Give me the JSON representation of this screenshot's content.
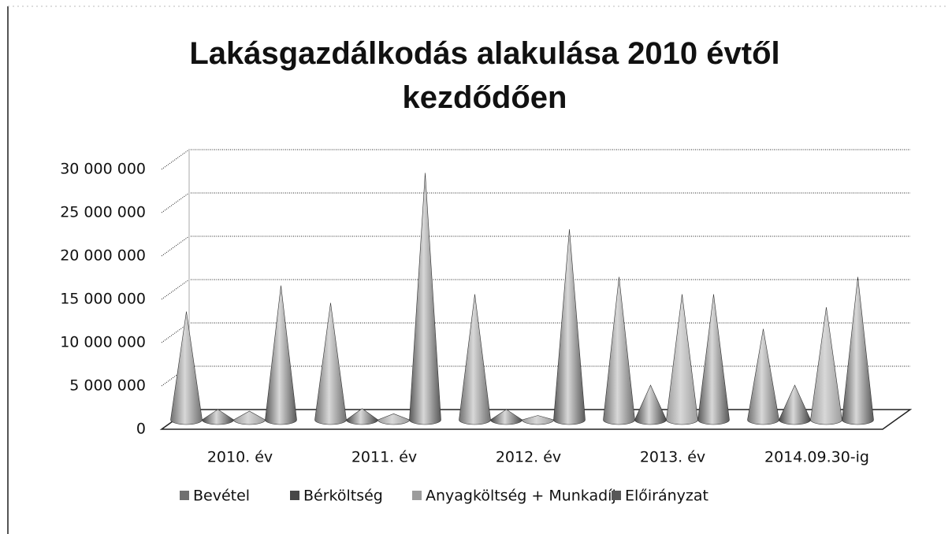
{
  "chart_data": {
    "type": "cone3d",
    "title": "Lakásgazdálkodás alakulása 2010 évtől kezdődően",
    "categories": [
      "2010. év",
      "2011. év",
      "2012. év",
      "2013. év",
      "2014.09.30-ig"
    ],
    "series": [
      {
        "name": "Bevétel",
        "color": "#707070",
        "values": [
          12500000,
          13500000,
          14500000,
          16500000,
          10500000
        ]
      },
      {
        "name": "Bérköltség",
        "color": "#474747",
        "values": [
          1200000,
          1300000,
          1200000,
          4000000,
          4000000
        ]
      },
      {
        "name": "Anyagköltség + Munkadíj",
        "color": "#9c9c9c",
        "values": [
          1000000,
          700000,
          500000,
          14500000,
          13000000
        ]
      },
      {
        "name": "Előirányzat",
        "color": "#585858",
        "values": [
          15500000,
          28500000,
          22000000,
          14500000,
          16500000
        ]
      }
    ],
    "ylim": [
      0,
      30000000
    ],
    "yticks": [
      0,
      {
        "value": 5000000,
        "label": "5 000 000"
      },
      {
        "value": 10000000,
        "label": "10 000 000"
      },
      {
        "value": 15000000,
        "label": "15 000 000"
      },
      {
        "value": 20000000,
        "label": "20 000 000"
      },
      {
        "value": 25000000,
        "label": "25 000 000"
      },
      {
        "value": 30000000,
        "label": "30 000 000"
      }
    ],
    "grid": true,
    "legend": "bottom"
  }
}
